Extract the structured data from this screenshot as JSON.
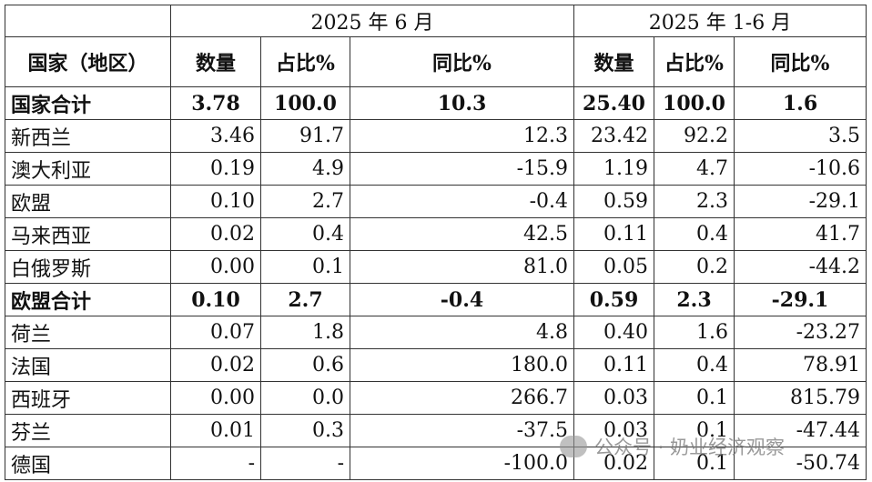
{
  "header": {
    "periods": [
      "2025 年 6 月",
      "2025 年 1-6 月"
    ],
    "columns": [
      "国家（地区）",
      "数量",
      "占比%",
      "同比%",
      "数量",
      "占比%",
      "同比%"
    ]
  },
  "table": {
    "rows": [
      [
        "国家合计",
        "3.78",
        "100.0",
        "10.3",
        "25.40",
        "100.0",
        "1.6"
      ],
      [
        "新西兰",
        "3.46",
        "91.7",
        "12.3",
        "23.42",
        "92.2",
        "3.5"
      ],
      [
        "澳大利亚",
        "0.19",
        "4.9",
        "-15.9",
        "1.19",
        "4.7",
        "-10.6"
      ],
      [
        "欧盟",
        "0.10",
        "2.7",
        "-0.4",
        "0.59",
        "2.3",
        "-29.1"
      ],
      [
        "马来西亚",
        "0.02",
        "0.4",
        "42.5",
        "0.11",
        "0.4",
        "41.7"
      ],
      [
        "白俄罗斯",
        "0.00",
        "0.1",
        "81.0",
        "0.05",
        "0.2",
        "-44.2"
      ],
      [
        "欧盟合计",
        "0.10",
        "2.7",
        "-0.4",
        "0.59",
        "2.3",
        "-29.1"
      ],
      [
        "荷兰",
        "0.07",
        "1.8",
        "4.8",
        "0.40",
        "1.6",
        "-23.27"
      ],
      [
        "法国",
        "0.02",
        "0.6",
        "180.0",
        "0.11",
        "0.4",
        "78.91"
      ],
      [
        "西班牙",
        "0.00",
        "0.0",
        "266.7",
        "0.03",
        "0.1",
        "815.79"
      ],
      [
        "芬兰",
        "0.01",
        "0.3",
        "-37.5",
        "0.03",
        "0.1",
        "-47.44"
      ],
      [
        "德国",
        "-",
        "-",
        "-100.0",
        "0.02",
        "0.1",
        "-50.74"
      ]
    ]
  },
  "watermark": "公众号 · 奶业经济观察"
}
